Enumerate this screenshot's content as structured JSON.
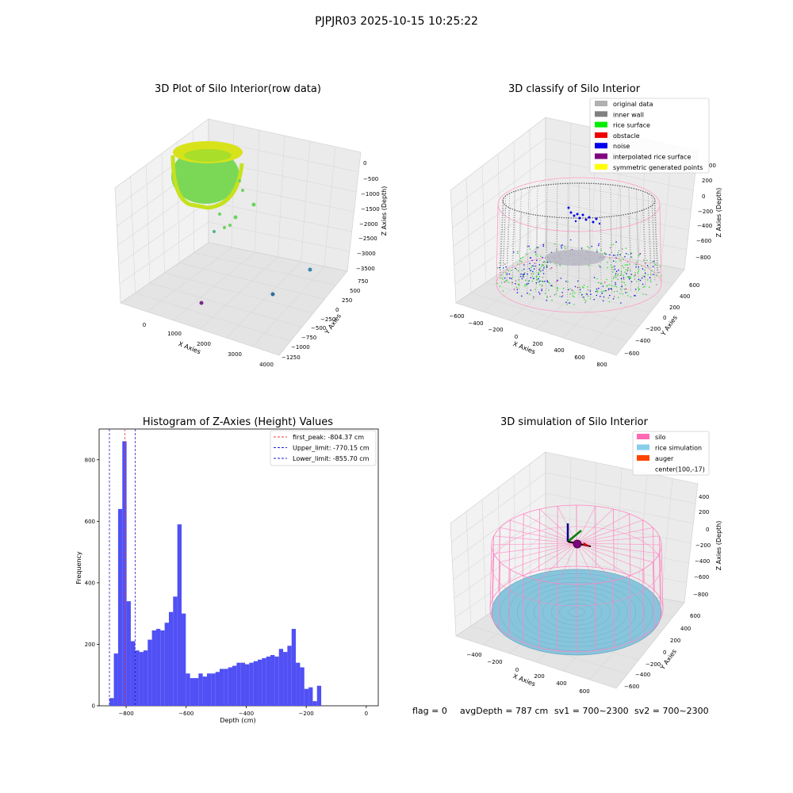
{
  "suptitle": "PJPJR03 2025-10-15 10:25:22",
  "colors": {
    "hist_bar": "#5050f5",
    "first_peak_line": "#e8403a",
    "limit_line": "#1f1fcc",
    "pane": "#f2f2f2",
    "grid": "#dcdcdc"
  },
  "panels": {
    "raw": {
      "title": "3D Plot of Silo Interior(row data)",
      "xlabel": "X Axies",
      "ylabel": "Y Axies",
      "zlabel": "Z Axies (Depth)",
      "xticks": [
        "0",
        "1000",
        "2000",
        "3000",
        "4000"
      ],
      "yticks": [
        "750",
        "500",
        "250",
        "0",
        "−250",
        "−500",
        "−750",
        "−1000",
        "−1250"
      ],
      "zticks": [
        "0",
        "−500",
        "−1000",
        "−1500",
        "−2000",
        "−2500",
        "−3000",
        "−3500"
      ]
    },
    "classify": {
      "title": "3D classify of Silo Interior",
      "xlabel": "X Axies",
      "ylabel": "Y Axies",
      "zlabel": "Z Axies (Depth)",
      "xticks": [
        "−600",
        "−400",
        "−200",
        "0",
        "200",
        "400",
        "600",
        "800"
      ],
      "yticks": [
        "600",
        "400",
        "200",
        "0",
        "−200",
        "−400",
        "−600"
      ],
      "zticks": [
        "200",
        "0",
        "−200",
        "−400",
        "−600",
        "−800"
      ],
      "zticks_top_partial": "00",
      "legend": [
        {
          "label": "original data",
          "color": "#b0b0b0"
        },
        {
          "label": "inner wall",
          "color": "#808080"
        },
        {
          "label": "rice surface",
          "color": "#00ee00"
        },
        {
          "label": "obstacle",
          "color": "#ee0000"
        },
        {
          "label": "noise",
          "color": "#0000ee"
        },
        {
          "label": "interpolated rice surface",
          "color": "#800080"
        },
        {
          "label": "symmetric generated points",
          "color": "#ffff00"
        }
      ]
    },
    "hist": {
      "title": "Histogram of Z-Axies (Height) Values",
      "xlabel": "Depth (cm)",
      "ylabel": "Frequency",
      "legend": [
        {
          "label": "first_peak: -804.37 cm",
          "color": "#e8403a"
        },
        {
          "label": "Upper_limit: -770.15 cm",
          "color": "#1f1fcc"
        },
        {
          "label": "Lower_limit: -855.70 cm",
          "color": "#1f1fcc"
        }
      ]
    },
    "sim": {
      "title": "3D simulation of Silo Interior",
      "xlabel": "X Axies",
      "ylabel": "Y Axies",
      "zlabel": "Z Axies (Depth)",
      "xticks": [
        "−400",
        "−200",
        "0",
        "200",
        "400",
        "600"
      ],
      "yticks": [
        "600",
        "400",
        "200",
        "0",
        "−200",
        "−400",
        "−600"
      ],
      "zticks": [
        "400",
        "200",
        "0",
        "−200",
        "−400",
        "−600",
        "−800"
      ],
      "legend": [
        {
          "label": "silo",
          "color": "#ff69b4"
        },
        {
          "label": "rice simulation",
          "color": "#87ceeb"
        },
        {
          "label": "auger",
          "color": "#ff4500"
        },
        {
          "label": "center(100,-17)",
          "color": ""
        }
      ]
    }
  },
  "status": {
    "flag": "flag = 0",
    "avg_depth": "avgDepth = 787 cm",
    "sv1": "sv1 = 700~2300",
    "sv2": "sv2 = 700~2300"
  },
  "chart_data": [
    {
      "type": "scatter",
      "title": "3D Plot of Silo Interior(row data)",
      "xlabel": "X Axies",
      "ylabel": "Y Axies",
      "zlabel": "Z Axies (Depth)",
      "xlim": [
        -500,
        4200
      ],
      "ylim": [
        -1300,
        800
      ],
      "zlim": [
        -3600,
        100
      ],
      "note_points": "dense ring of points near x 0..1000, z 0..-1200, plus a few scattered outliers"
    },
    {
      "type": "scatter",
      "title": "3D classify of Silo Interior",
      "xlabel": "X Axies",
      "ylabel": "Y Axies",
      "zlabel": "Z Axies (Depth)",
      "xlim": [
        -650,
        850
      ],
      "ylim": [
        -650,
        650
      ],
      "zlim": [
        -900,
        300
      ],
      "series": [
        {
          "name": "original data"
        },
        {
          "name": "inner wall"
        },
        {
          "name": "rice surface"
        },
        {
          "name": "obstacle"
        },
        {
          "name": "noise"
        },
        {
          "name": "interpolated rice surface"
        },
        {
          "name": "symmetric generated points"
        }
      ]
    },
    {
      "type": "bar",
      "title": "Histogram of Z-Axies (Height) Values",
      "xlabel": "Depth (cm)",
      "ylabel": "Frequency",
      "xlim": [
        -890,
        40
      ],
      "ylim": [
        0,
        900
      ],
      "xticks": [
        -800,
        -600,
        -400,
        -200,
        0
      ],
      "yticks": [
        0,
        200,
        400,
        600,
        800
      ],
      "bin_start": -855,
      "bin_width": 14.1,
      "values": [
        25,
        170,
        640,
        860,
        340,
        210,
        180,
        175,
        180,
        215,
        245,
        250,
        245,
        270,
        305,
        355,
        590,
        300,
        105,
        90,
        90,
        105,
        95,
        105,
        105,
        110,
        120,
        120,
        125,
        130,
        140,
        140,
        135,
        140,
        145,
        150,
        155,
        160,
        165,
        160,
        185,
        175,
        195,
        250,
        140,
        125,
        55,
        60,
        15,
        65
      ],
      "vlines": [
        {
          "name": "first_peak: -804.37 cm",
          "x": -804.37,
          "color": "#e8403a"
        },
        {
          "name": "Upper_limit: -770.15 cm",
          "x": -770.15,
          "color": "#1f1fcc"
        },
        {
          "name": "Lower_limit: -855.70 cm",
          "x": -855.7,
          "color": "#1f1fcc"
        }
      ]
    },
    {
      "type": "scatter",
      "title": "3D simulation of Silo Interior",
      "xlabel": "X Axies",
      "ylabel": "Y Axies",
      "zlabel": "Z Axies (Depth)",
      "xlim": [
        -500,
        700
      ],
      "ylim": [
        -650,
        650
      ],
      "zlim": [
        -900,
        450
      ],
      "series": [
        {
          "name": "silo"
        },
        {
          "name": "rice simulation"
        },
        {
          "name": "auger"
        },
        {
          "name": "center(100,-17)"
        }
      ]
    }
  ]
}
